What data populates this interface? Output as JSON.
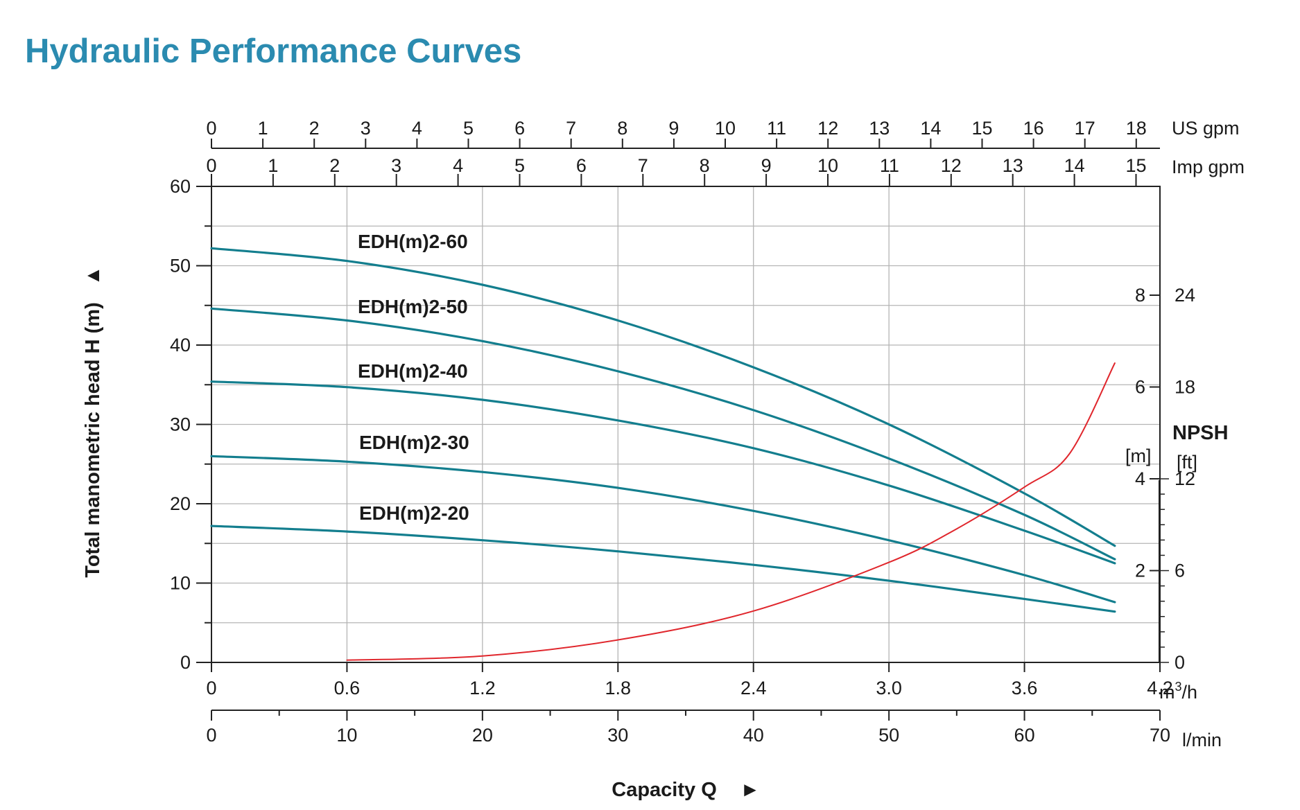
{
  "title": "Hydraulic Performance Curves",
  "colors": {
    "title": "#2b8bb0",
    "head_curve": "#137e8e",
    "npsh_curve": "#e0262c",
    "grid": "#b4b4b4",
    "axis": "#222222"
  },
  "chart_data": {
    "type": "line",
    "title": "Hydraulic Performance Curves",
    "ylabel": "Total manometric head H (m)",
    "ylabel_arrow": "▲",
    "xlabel": "Capacity Q",
    "xlabel_arrow": "►",
    "x_unit": "m³/h",
    "x_unit_base": "m",
    "x_unit_sup": "3",
    "x_unit_tail": "/h",
    "xlim": [
      0,
      4.2
    ],
    "ylim": [
      0,
      60
    ],
    "x_ticks": [
      "0",
      "0.6",
      "1.2",
      "1.8",
      "2.4",
      "3.0",
      "3.6",
      "4.2"
    ],
    "y_ticks": [
      "0",
      "10",
      "20",
      "30",
      "40",
      "50",
      "60"
    ],
    "grid": true,
    "secondary_x_axes": {
      "us_gpm": {
        "unit": "US gpm",
        "ticks": [
          "0",
          "1",
          "2",
          "3",
          "4",
          "5",
          "6",
          "7",
          "8",
          "9",
          "10",
          "11",
          "12",
          "13",
          "14",
          "15",
          "16",
          "17",
          "18"
        ]
      },
      "imp_gpm": {
        "unit": "Imp gpm",
        "ticks": [
          "0",
          "1",
          "2",
          "3",
          "4",
          "5",
          "6",
          "7",
          "8",
          "9",
          "10",
          "11",
          "12",
          "13",
          "14",
          "15"
        ]
      },
      "l_min": {
        "unit": "l/min",
        "ticks": [
          "0",
          "10",
          "20",
          "30",
          "40",
          "50",
          "60",
          "70"
        ],
        "max": 70
      }
    },
    "npsh_axis": {
      "title": "NPSH",
      "m_unit": "[m]",
      "ft_unit": "[ft]",
      "m_ticks": [
        "2",
        "4",
        "6",
        "8"
      ],
      "ft_ticks": [
        "0",
        "6",
        "12",
        "18",
        "24"
      ]
    },
    "series": [
      {
        "name": "EDH(m)2-60",
        "x": [
          0,
          0.6,
          1.2,
          1.8,
          2.4,
          3.0,
          3.6,
          4.0
        ],
        "y": [
          52.2,
          50.6,
          47.6,
          43.1,
          37.2,
          30.0,
          21.3,
          14.7
        ]
      },
      {
        "name": "EDH(m)2-50",
        "x": [
          0,
          0.6,
          1.2,
          1.8,
          2.4,
          3.0,
          3.6,
          4.0
        ],
        "y": [
          44.6,
          43.1,
          40.5,
          36.7,
          31.8,
          25.7,
          18.6,
          13.0
        ]
      },
      {
        "name": "EDH(m)2-40",
        "x": [
          0,
          0.6,
          1.2,
          1.8,
          2.4,
          3.0,
          3.6,
          4.0
        ],
        "y": [
          35.4,
          34.7,
          33.1,
          30.5,
          27.0,
          22.3,
          16.6,
          12.5
        ]
      },
      {
        "name": "EDH(m)2-30",
        "x": [
          0,
          0.6,
          1.2,
          1.8,
          2.4,
          3.0,
          3.6,
          4.0
        ],
        "y": [
          26.0,
          25.3,
          24.0,
          22.0,
          19.1,
          15.4,
          11.0,
          7.6
        ]
      },
      {
        "name": "EDH(m)2-20",
        "x": [
          0,
          0.6,
          1.2,
          1.8,
          2.4,
          3.0,
          3.6,
          4.0
        ],
        "y": [
          17.2,
          16.5,
          15.4,
          14.0,
          12.3,
          10.3,
          8.0,
          6.4
        ]
      },
      {
        "name": "NPSH",
        "axis": "npsh_m",
        "x": [
          0.6,
          1.2,
          1.8,
          2.4,
          3.0,
          3.3,
          3.6,
          3.8,
          4.0
        ],
        "y": [
          0.05,
          0.14,
          0.49,
          1.12,
          2.18,
          2.91,
          3.82,
          4.55,
          6.52
        ]
      }
    ]
  }
}
